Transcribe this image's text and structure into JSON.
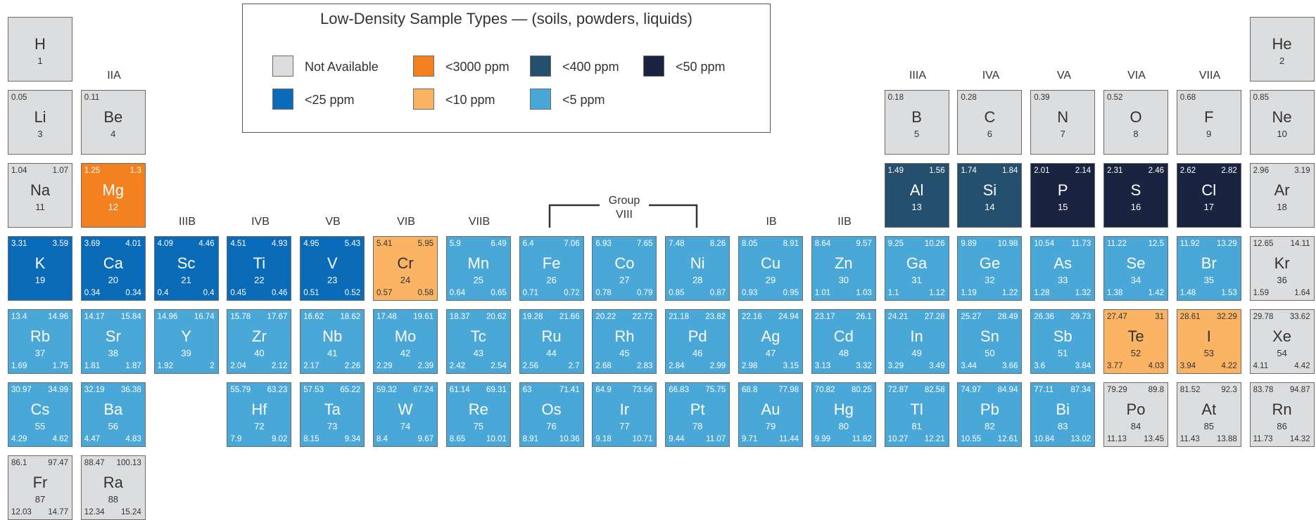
{
  "legend": {
    "title": "Low-Density Sample Types — (soils, powders, liquids)",
    "items": [
      {
        "label": "Not Available",
        "key": "na"
      },
      {
        "label": "<3000 ppm",
        "key": "ppm3000"
      },
      {
        "label": "<400 ppm",
        "key": "ppm400"
      },
      {
        "label": "<50 ppm",
        "key": "ppm50"
      },
      {
        "label": "<25 ppm",
        "key": "ppm25"
      },
      {
        "label": "<10 ppm",
        "key": "ppm10"
      },
      {
        "label": "<5 ppm",
        "key": "ppm5"
      }
    ]
  },
  "colors": {
    "na": "#dcdddf",
    "ppm3000": "#f48120",
    "ppm400": "#24506e",
    "ppm50": "#1a2440",
    "ppm25": "#0a6bb8",
    "ppm10": "#fbb364",
    "ppm5": "#4aa8d8"
  },
  "group_labels": {
    "IIA": "IIA",
    "IIIB": "IIIB",
    "IVB": "IVB",
    "VB": "VB",
    "VIB": "VIB",
    "VIIB": "VIIB",
    "IB": "IB",
    "IIB": "IIB",
    "IIIA": "IIIA",
    "IVA": "IVA",
    "VA": "VA",
    "VIA": "VIA",
    "VIIA": "VIIA",
    "group8_line1": "Group",
    "group8_line2": "VIII"
  },
  "elements": [
    {
      "sym": "H",
      "num": "1",
      "tl": "",
      "tr": "",
      "bl": "",
      "br": "",
      "cat": "na",
      "row": 1,
      "col": 1
    },
    {
      "sym": "He",
      "num": "2",
      "tl": "",
      "tr": "",
      "bl": "",
      "br": "",
      "cat": "na",
      "row": 1,
      "col": 18
    },
    {
      "sym": "Li",
      "num": "3",
      "tl": "0.05",
      "tr": "",
      "bl": "",
      "br": "",
      "cat": "na",
      "row": 2,
      "col": 1
    },
    {
      "sym": "Be",
      "num": "4",
      "tl": "0.11",
      "tr": "",
      "bl": "",
      "br": "",
      "cat": "na",
      "row": 2,
      "col": 2
    },
    {
      "sym": "B",
      "num": "5",
      "tl": "0.18",
      "tr": "",
      "bl": "",
      "br": "",
      "cat": "na",
      "row": 2,
      "col": 13
    },
    {
      "sym": "C",
      "num": "6",
      "tl": "0.28",
      "tr": "",
      "bl": "",
      "br": "",
      "cat": "na",
      "row": 2,
      "col": 14
    },
    {
      "sym": "N",
      "num": "7",
      "tl": "0.39",
      "tr": "",
      "bl": "",
      "br": "",
      "cat": "na",
      "row": 2,
      "col": 15
    },
    {
      "sym": "O",
      "num": "8",
      "tl": "0.52",
      "tr": "",
      "bl": "",
      "br": "",
      "cat": "na",
      "row": 2,
      "col": 16
    },
    {
      "sym": "F",
      "num": "9",
      "tl": "0.68",
      "tr": "",
      "bl": "",
      "br": "",
      "cat": "na",
      "row": 2,
      "col": 17
    },
    {
      "sym": "Ne",
      "num": "10",
      "tl": "0.85",
      "tr": "",
      "bl": "",
      "br": "",
      "cat": "na",
      "row": 2,
      "col": 18
    },
    {
      "sym": "Na",
      "num": "11",
      "tl": "1.04",
      "tr": "1.07",
      "bl": "",
      "br": "",
      "cat": "na",
      "row": 3,
      "col": 1
    },
    {
      "sym": "Mg",
      "num": "12",
      "tl": "1.25",
      "tr": "1.3",
      "bl": "",
      "br": "",
      "cat": "ppm3000",
      "row": 3,
      "col": 2
    },
    {
      "sym": "Al",
      "num": "13",
      "tl": "1.49",
      "tr": "1.56",
      "bl": "",
      "br": "",
      "cat": "ppm400",
      "row": 3,
      "col": 13
    },
    {
      "sym": "Si",
      "num": "14",
      "tl": "1.74",
      "tr": "1.84",
      "bl": "",
      "br": "",
      "cat": "ppm400",
      "row": 3,
      "col": 14
    },
    {
      "sym": "P",
      "num": "15",
      "tl": "2.01",
      "tr": "2.14",
      "bl": "",
      "br": "",
      "cat": "ppm50",
      "row": 3,
      "col": 15
    },
    {
      "sym": "S",
      "num": "16",
      "tl": "2.31",
      "tr": "2.46",
      "bl": "",
      "br": "",
      "cat": "ppm50",
      "row": 3,
      "col": 16
    },
    {
      "sym": "Cl",
      "num": "17",
      "tl": "2.62",
      "tr": "2.82",
      "bl": "",
      "br": "",
      "cat": "ppm50",
      "row": 3,
      "col": 17
    },
    {
      "sym": "Ar",
      "num": "18",
      "tl": "2.96",
      "tr": "3.19",
      "bl": "",
      "br": "",
      "cat": "na",
      "row": 3,
      "col": 18
    },
    {
      "sym": "K",
      "num": "19",
      "tl": "3.31",
      "tr": "3.59",
      "bl": "",
      "br": "",
      "cat": "ppm25",
      "row": 4,
      "col": 1
    },
    {
      "sym": "Ca",
      "num": "20",
      "tl": "3.69",
      "tr": "4.01",
      "bl": "0.34",
      "br": "0.34",
      "cat": "ppm25",
      "row": 4,
      "col": 2
    },
    {
      "sym": "Sc",
      "num": "21",
      "tl": "4.09",
      "tr": "4.46",
      "bl": "0.4",
      "br": "0.4",
      "cat": "ppm25",
      "row": 4,
      "col": 3
    },
    {
      "sym": "Ti",
      "num": "22",
      "tl": "4.51",
      "tr": "4.93",
      "bl": "0.45",
      "br": "0.46",
      "cat": "ppm25",
      "row": 4,
      "col": 4
    },
    {
      "sym": "V",
      "num": "23",
      "tl": "4.95",
      "tr": "5.43",
      "bl": "0.51",
      "br": "0.52",
      "cat": "ppm25",
      "row": 4,
      "col": 5
    },
    {
      "sym": "Cr",
      "num": "24",
      "tl": "5.41",
      "tr": "5.95",
      "bl": "0.57",
      "br": "0.58",
      "cat": "ppm10",
      "row": 4,
      "col": 6
    },
    {
      "sym": "Mn",
      "num": "25",
      "tl": "5.9",
      "tr": "6.49",
      "bl": "0.64",
      "br": "0.65",
      "cat": "ppm5",
      "row": 4,
      "col": 7
    },
    {
      "sym": "Fe",
      "num": "26",
      "tl": "6.4",
      "tr": "7.06",
      "bl": "0.71",
      "br": "0.72",
      "cat": "ppm5",
      "row": 4,
      "col": 8
    },
    {
      "sym": "Co",
      "num": "27",
      "tl": "6.93",
      "tr": "7.65",
      "bl": "0.78",
      "br": "0.79",
      "cat": "ppm5",
      "row": 4,
      "col": 9
    },
    {
      "sym": "Ni",
      "num": "28",
      "tl": "7.48",
      "tr": "8.26",
      "bl": "0.85",
      "br": "0.87",
      "cat": "ppm5",
      "row": 4,
      "col": 10
    },
    {
      "sym": "Cu",
      "num": "29",
      "tl": "8.05",
      "tr": "8.91",
      "bl": "0.93",
      "br": "0.95",
      "cat": "ppm5",
      "row": 4,
      "col": 11
    },
    {
      "sym": "Zn",
      "num": "30",
      "tl": "8.64",
      "tr": "9.57",
      "bl": "1.01",
      "br": "1.03",
      "cat": "ppm5",
      "row": 4,
      "col": 12
    },
    {
      "sym": "Ga",
      "num": "31",
      "tl": "9.25",
      "tr": "10.26",
      "bl": "1.1",
      "br": "1.12",
      "cat": "ppm5",
      "row": 4,
      "col": 13
    },
    {
      "sym": "Ge",
      "num": "32",
      "tl": "9.89",
      "tr": "10.98",
      "bl": "1.19",
      "br": "1.22",
      "cat": "ppm5",
      "row": 4,
      "col": 14
    },
    {
      "sym": "As",
      "num": "33",
      "tl": "10.54",
      "tr": "11.73",
      "bl": "1.28",
      "br": "1.32",
      "cat": "ppm5",
      "row": 4,
      "col": 15
    },
    {
      "sym": "Se",
      "num": "34",
      "tl": "11.22",
      "tr": "12.5",
      "bl": "1.38",
      "br": "1.42",
      "cat": "ppm5",
      "row": 4,
      "col": 16
    },
    {
      "sym": "Br",
      "num": "35",
      "tl": "11.92",
      "tr": "13.29",
      "bl": "1.48",
      "br": "1.53",
      "cat": "ppm5",
      "row": 4,
      "col": 17
    },
    {
      "sym": "Kr",
      "num": "36",
      "tl": "12.65",
      "tr": "14.11",
      "bl": "1.59",
      "br": "1.64",
      "cat": "na",
      "row": 4,
      "col": 18
    },
    {
      "sym": "Rb",
      "num": "37",
      "tl": "13.4",
      "tr": "14.96",
      "bl": "1.69",
      "br": "1.75",
      "cat": "ppm5",
      "row": 5,
      "col": 1
    },
    {
      "sym": "Sr",
      "num": "38",
      "tl": "14.17",
      "tr": "15.84",
      "bl": "1.81",
      "br": "1.87",
      "cat": "ppm5",
      "row": 5,
      "col": 2
    },
    {
      "sym": "Y",
      "num": "39",
      "tl": "14.96",
      "tr": "16.74",
      "bl": "1.92",
      "br": "2",
      "cat": "ppm5",
      "row": 5,
      "col": 3
    },
    {
      "sym": "Zr",
      "num": "40",
      "tl": "15.78",
      "tr": "17.67",
      "bl": "2.04",
      "br": "2.12",
      "cat": "ppm5",
      "row": 5,
      "col": 4
    },
    {
      "sym": "Nb",
      "num": "41",
      "tl": "16.62",
      "tr": "18.62",
      "bl": "2.17",
      "br": "2.26",
      "cat": "ppm5",
      "row": 5,
      "col": 5
    },
    {
      "sym": "Mo",
      "num": "42",
      "tl": "17.48",
      "tr": "19.61",
      "bl": "2.29",
      "br": "2.39",
      "cat": "ppm5",
      "row": 5,
      "col": 6
    },
    {
      "sym": "Tc",
      "num": "43",
      "tl": "18.37",
      "tr": "20.62",
      "bl": "2.42",
      "br": "2.54",
      "cat": "ppm5",
      "row": 5,
      "col": 7
    },
    {
      "sym": "Ru",
      "num": "44",
      "tl": "19.28",
      "tr": "21.66",
      "bl": "2.56",
      "br": "2.7",
      "cat": "ppm5",
      "row": 5,
      "col": 8
    },
    {
      "sym": "Rh",
      "num": "45",
      "tl": "20.22",
      "tr": "22.72",
      "bl": "2.68",
      "br": "2.83",
      "cat": "ppm5",
      "row": 5,
      "col": 9
    },
    {
      "sym": "Pd",
      "num": "46",
      "tl": "21.18",
      "tr": "23.82",
      "bl": "2.84",
      "br": "2.99",
      "cat": "ppm5",
      "row": 5,
      "col": 10
    },
    {
      "sym": "Ag",
      "num": "47",
      "tl": "22.16",
      "tr": "24.94",
      "bl": "2.98",
      "br": "3.15",
      "cat": "ppm5",
      "row": 5,
      "col": 11
    },
    {
      "sym": "Cd",
      "num": "48",
      "tl": "23.17",
      "tr": "26.1",
      "bl": "3.13",
      "br": "3.32",
      "cat": "ppm5",
      "row": 5,
      "col": 12
    },
    {
      "sym": "In",
      "num": "49",
      "tl": "24.21",
      "tr": "27.28",
      "bl": "3.29",
      "br": "3.49",
      "cat": "ppm5",
      "row": 5,
      "col": 13
    },
    {
      "sym": "Sn",
      "num": "50",
      "tl": "25.27",
      "tr": "28.49",
      "bl": "3.44",
      "br": "3.66",
      "cat": "ppm5",
      "row": 5,
      "col": 14
    },
    {
      "sym": "Sb",
      "num": "51",
      "tl": "26.36",
      "tr": "29.73",
      "bl": "3.6",
      "br": "3.84",
      "cat": "ppm5",
      "row": 5,
      "col": 15
    },
    {
      "sym": "Te",
      "num": "52",
      "tl": "27.47",
      "tr": "31",
      "bl": "3.77",
      "br": "4.03",
      "cat": "ppm10",
      "row": 5,
      "col": 16
    },
    {
      "sym": "I",
      "num": "53",
      "tl": "28.61",
      "tr": "32.29",
      "bl": "3.94",
      "br": "4.22",
      "cat": "ppm10",
      "row": 5,
      "col": 17
    },
    {
      "sym": "Xe",
      "num": "54",
      "tl": "29.78",
      "tr": "33.62",
      "bl": "4.11",
      "br": "4.42",
      "cat": "na",
      "row": 5,
      "col": 18
    },
    {
      "sym": "Cs",
      "num": "55",
      "tl": "30.97",
      "tr": "34.99",
      "bl": "4.29",
      "br": "4.62",
      "cat": "ppm5",
      "row": 6,
      "col": 1
    },
    {
      "sym": "Ba",
      "num": "56",
      "tl": "32.19",
      "tr": "36.38",
      "bl": "4.47",
      "br": "4.83",
      "cat": "ppm5",
      "row": 6,
      "col": 2
    },
    {
      "sym": "Hf",
      "num": "72",
      "tl": "55.79",
      "tr": "63.23",
      "bl": "7.9",
      "br": "9.02",
      "cat": "ppm5",
      "row": 6,
      "col": 4
    },
    {
      "sym": "Ta",
      "num": "73",
      "tl": "57.53",
      "tr": "65.22",
      "bl": "8.15",
      "br": "9.34",
      "cat": "ppm5",
      "row": 6,
      "col": 5
    },
    {
      "sym": "W",
      "num": "74",
      "tl": "59.32",
      "tr": "67.24",
      "bl": "8.4",
      "br": "9.67",
      "cat": "ppm5",
      "row": 6,
      "col": 6
    },
    {
      "sym": "Re",
      "num": "75",
      "tl": "61.14",
      "tr": "69.31",
      "bl": "8.65",
      "br": "10.01",
      "cat": "ppm5",
      "row": 6,
      "col": 7
    },
    {
      "sym": "Os",
      "num": "76",
      "tl": "63",
      "tr": "71.41",
      "bl": "8.91",
      "br": "10.36",
      "cat": "ppm5",
      "row": 6,
      "col": 8
    },
    {
      "sym": "Ir",
      "num": "77",
      "tl": "64.9",
      "tr": "73.56",
      "bl": "9.18",
      "br": "10.71",
      "cat": "ppm5",
      "row": 6,
      "col": 9
    },
    {
      "sym": "Pt",
      "num": "78",
      "tl": "66.83",
      "tr": "75.75",
      "bl": "9.44",
      "br": "11.07",
      "cat": "ppm5",
      "row": 6,
      "col": 10
    },
    {
      "sym": "Au",
      "num": "79",
      "tl": "68.8",
      "tr": "77.98",
      "bl": "9.71",
      "br": "11.44",
      "cat": "ppm5",
      "row": 6,
      "col": 11
    },
    {
      "sym": "Hg",
      "num": "80",
      "tl": "70.82",
      "tr": "80.25",
      "bl": "9.99",
      "br": "11.82",
      "cat": "ppm5",
      "row": 6,
      "col": 12
    },
    {
      "sym": "Tl",
      "num": "81",
      "tl": "72.87",
      "tr": "82.58",
      "bl": "10.27",
      "br": "12.21",
      "cat": "ppm5",
      "row": 6,
      "col": 13
    },
    {
      "sym": "Pb",
      "num": "82",
      "tl": "74.97",
      "tr": "84.94",
      "bl": "10.55",
      "br": "12.61",
      "cat": "ppm5",
      "row": 6,
      "col": 14
    },
    {
      "sym": "Bi",
      "num": "83",
      "tl": "77.11",
      "tr": "87.34",
      "bl": "10.84",
      "br": "13.02",
      "cat": "ppm5",
      "row": 6,
      "col": 15
    },
    {
      "sym": "Po",
      "num": "84",
      "tl": "79.29",
      "tr": "89.8",
      "bl": "11.13",
      "br": "13.45",
      "cat": "na",
      "row": 6,
      "col": 16
    },
    {
      "sym": "At",
      "num": "85",
      "tl": "81.52",
      "tr": "92.3",
      "bl": "11.43",
      "br": "13.88",
      "cat": "na",
      "row": 6,
      "col": 17
    },
    {
      "sym": "Rn",
      "num": "86",
      "tl": "83.78",
      "tr": "94.87",
      "bl": "11.73",
      "br": "14.32",
      "cat": "na",
      "row": 6,
      "col": 18
    },
    {
      "sym": "Fr",
      "num": "87",
      "tl": "86.1",
      "tr": "97.47",
      "bl": "12.03",
      "br": "14.77",
      "cat": "na",
      "row": 7,
      "col": 1
    },
    {
      "sym": "Ra",
      "num": "88",
      "tl": "88.47",
      "tr": "100.13",
      "bl": "12.34",
      "br": "15.24",
      "cat": "na",
      "row": 7,
      "col": 2
    }
  ]
}
